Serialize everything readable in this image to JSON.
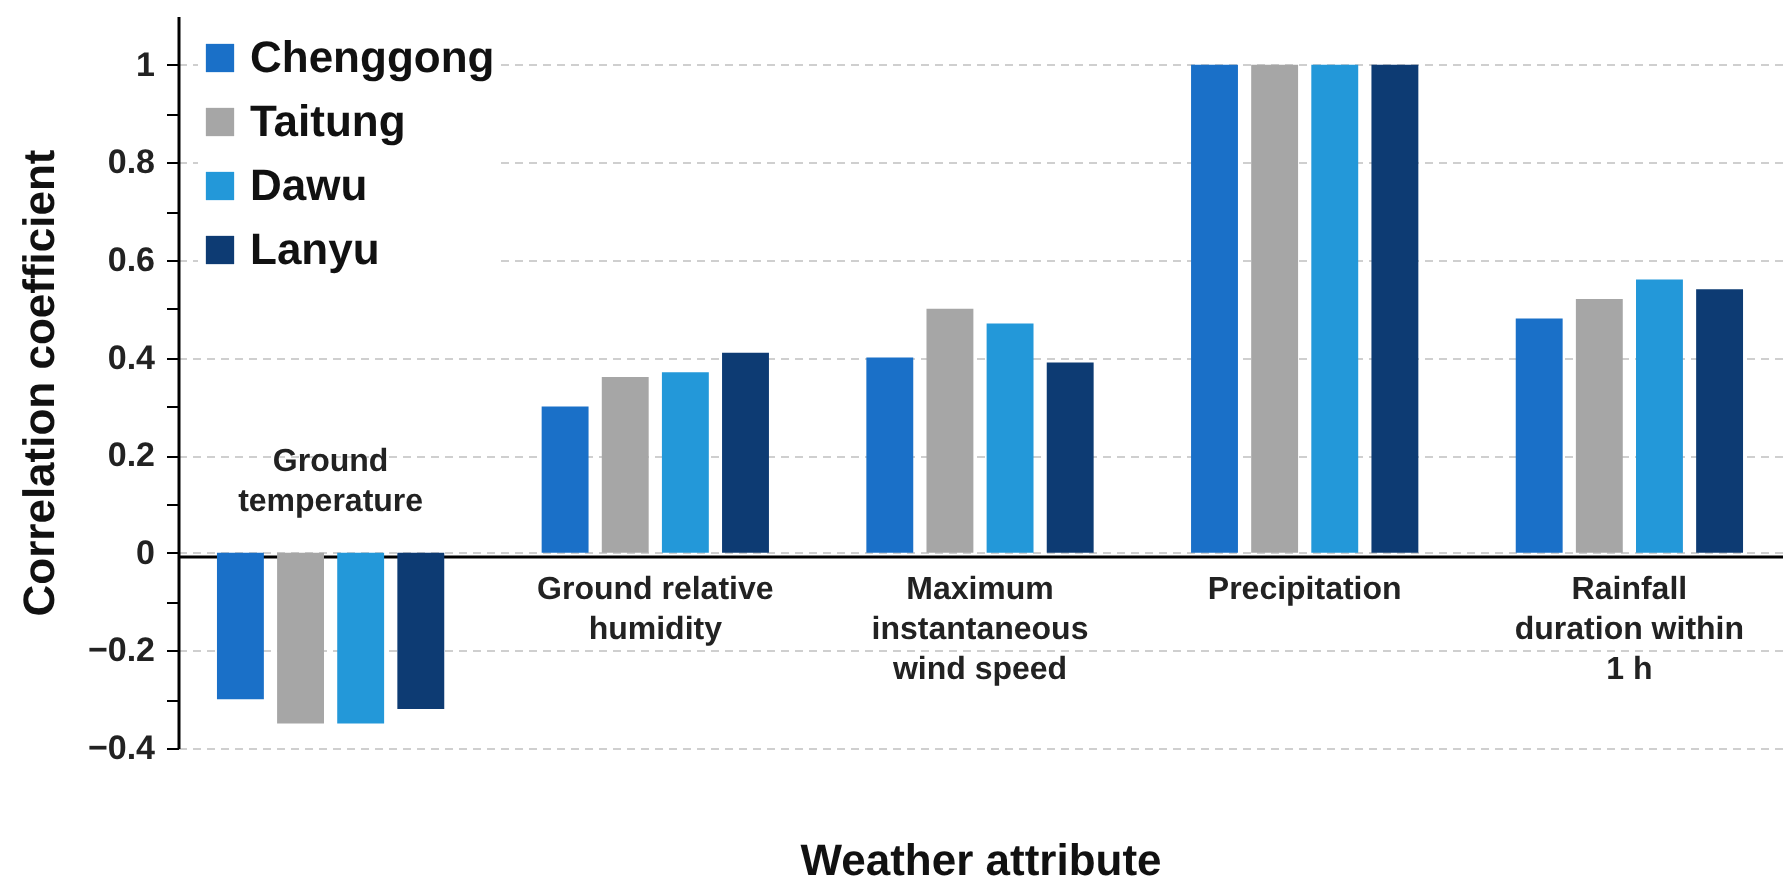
{
  "chart_data": {
    "type": "bar",
    "xlabel": "Weather attribute",
    "ylabel": "Correlation coefficient",
    "categories": [
      "Ground temperature",
      "Ground relative humidity",
      "Maximum instantaneous wind speed",
      "Precipitation",
      "Rainfall duration within 1 h"
    ],
    "series": [
      {
        "name": "Chenggong",
        "color": "#1a70c8",
        "values": [
          -0.3,
          0.3,
          0.4,
          1,
          0.48
        ]
      },
      {
        "name": "Taitung",
        "color": "#a6a6a6",
        "values": [
          -0.35,
          0.36,
          0.5,
          1,
          0.52
        ]
      },
      {
        "name": "Dawu",
        "color": "#2398d9",
        "values": [
          -0.35,
          0.37,
          0.47,
          1,
          0.56
        ]
      },
      {
        "name": "Lanyu",
        "color": "#0d3b73",
        "values": [
          -0.32,
          0.41,
          0.39,
          1,
          0.54
        ]
      }
    ],
    "ylim": [
      -0.4,
      1.1
    ],
    "yticks": [
      {
        "value": -0.4,
        "label": "−0.4"
      },
      {
        "value": -0.3,
        "label": null
      },
      {
        "value": -0.2,
        "label": "−0.2"
      },
      {
        "value": -0.1,
        "label": null
      },
      0,
      {
        "value": 0.1,
        "label": null
      },
      0.2,
      {
        "value": 0.3,
        "label": null
      },
      0.4,
      {
        "value": 0.5,
        "label": null
      },
      0.6,
      {
        "value": 0.7,
        "label": null
      },
      0.8,
      {
        "value": 0.9,
        "label": null
      },
      1
    ],
    "grid": true,
    "legend": "top left"
  }
}
